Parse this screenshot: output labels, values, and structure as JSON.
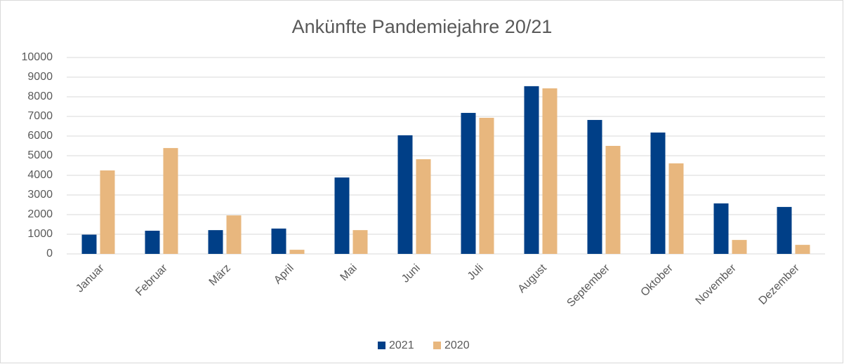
{
  "chart_data": {
    "type": "bar",
    "title": "Ankünfte Pandemiejahre 20/21",
    "categories": [
      "Januar",
      "Februar",
      "März",
      "April",
      "Mai",
      "Juni",
      "Juli",
      "August",
      "September",
      "Oktober",
      "November",
      "Dezember"
    ],
    "series": [
      {
        "name": "2021",
        "color": "#003f87",
        "values": [
          980,
          1180,
          1210,
          1290,
          3890,
          6040,
          7180,
          8540,
          6820,
          6180,
          2570,
          2390
        ]
      },
      {
        "name": "2020",
        "color": "#e8b77e",
        "values": [
          4250,
          5390,
          1960,
          210,
          1210,
          4820,
          6930,
          8430,
          5500,
          4610,
          710,
          460
        ]
      }
    ],
    "ylim": [
      0,
      10000
    ],
    "yticks": [
      0,
      1000,
      2000,
      3000,
      4000,
      5000,
      6000,
      7000,
      8000,
      9000,
      10000
    ],
    "grid": true,
    "legend": "bottom"
  }
}
